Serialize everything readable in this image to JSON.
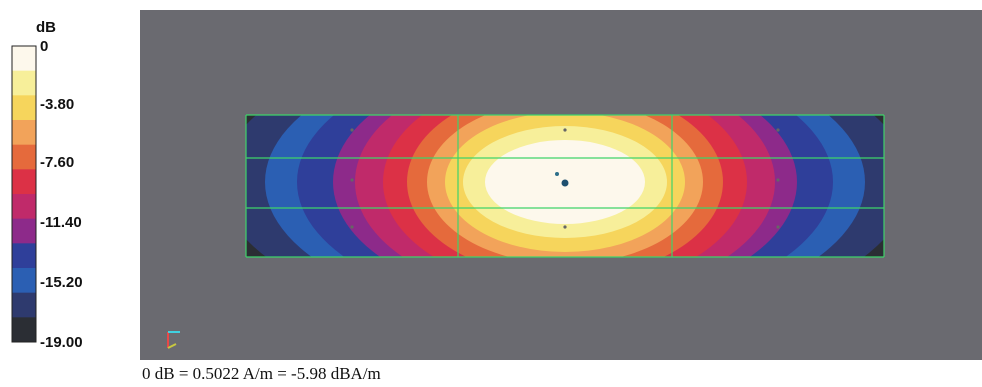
{
  "chart_data": {
    "type": "heatmap",
    "colorbar": {
      "unit": "dB",
      "ticks": [
        "0",
        "-3.80",
        "-7.60",
        "-11.40",
        "-15.20",
        "-19.00"
      ],
      "range": [
        -19.0,
        0
      ],
      "colors_top_to_bottom": [
        "#fdf8ec",
        "#f7ef9a",
        "#f6d55c",
        "#f2a35a",
        "#e56a3c",
        "#dc3146",
        "#c02a6a",
        "#8d2a8a",
        "#2f3f9a",
        "#2b5fb3",
        "#2e3a6e",
        "#2b2e34"
      ]
    },
    "background_color": "#6b6b70",
    "grid_color": "#3fd36a",
    "grid": {
      "rows": 3,
      "cols": 3
    },
    "peak_value_db": 0,
    "min_value_db": -19.0,
    "caption": "0 dB = 0.5022 A/m = -5.98 dBA/m"
  }
}
